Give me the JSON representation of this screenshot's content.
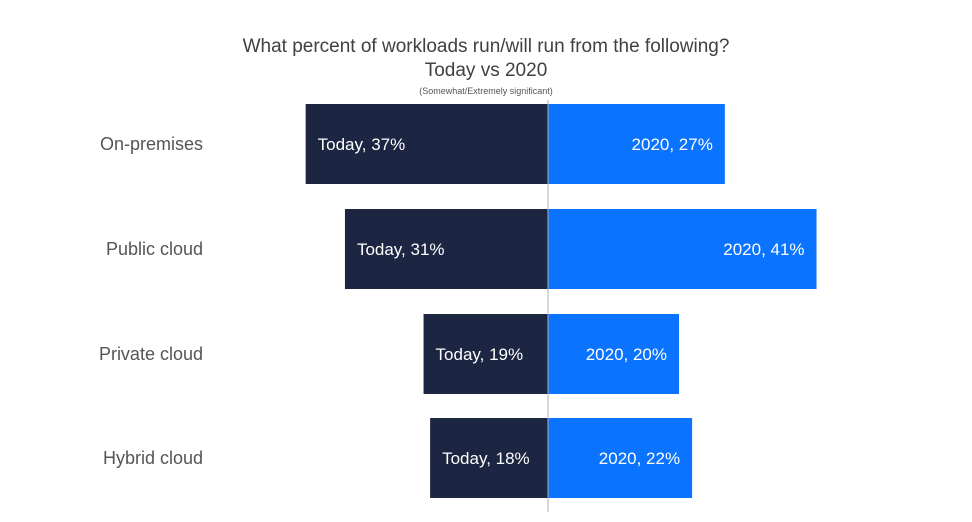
{
  "chart_data": {
    "type": "bar",
    "orientation": "horizontal-diverging",
    "title": "What percent of workloads run/will run from the following?",
    "subtitle": "Today vs 2020",
    "note": "(Somewhat/Extremely significant)",
    "categories": [
      "On-premises",
      "Public cloud",
      "Private cloud",
      "Hybrid cloud"
    ],
    "series": [
      {
        "name": "Today",
        "values": [
          37,
          31,
          19,
          18
        ],
        "labels": [
          "Today, 37%",
          "Today,  31%",
          "Today, 19%",
          "Today, 18%"
        ],
        "color": "#1c2541",
        "direction": "left"
      },
      {
        "name": "2020",
        "values": [
          27,
          41,
          20,
          22
        ],
        "labels": [
          "2020, 27%",
          "2020, 41%",
          "2020, 20%",
          "2020, 22%"
        ],
        "color": "#0a73ff",
        "direction": "right"
      }
    ],
    "grid": false,
    "legend": "none"
  }
}
